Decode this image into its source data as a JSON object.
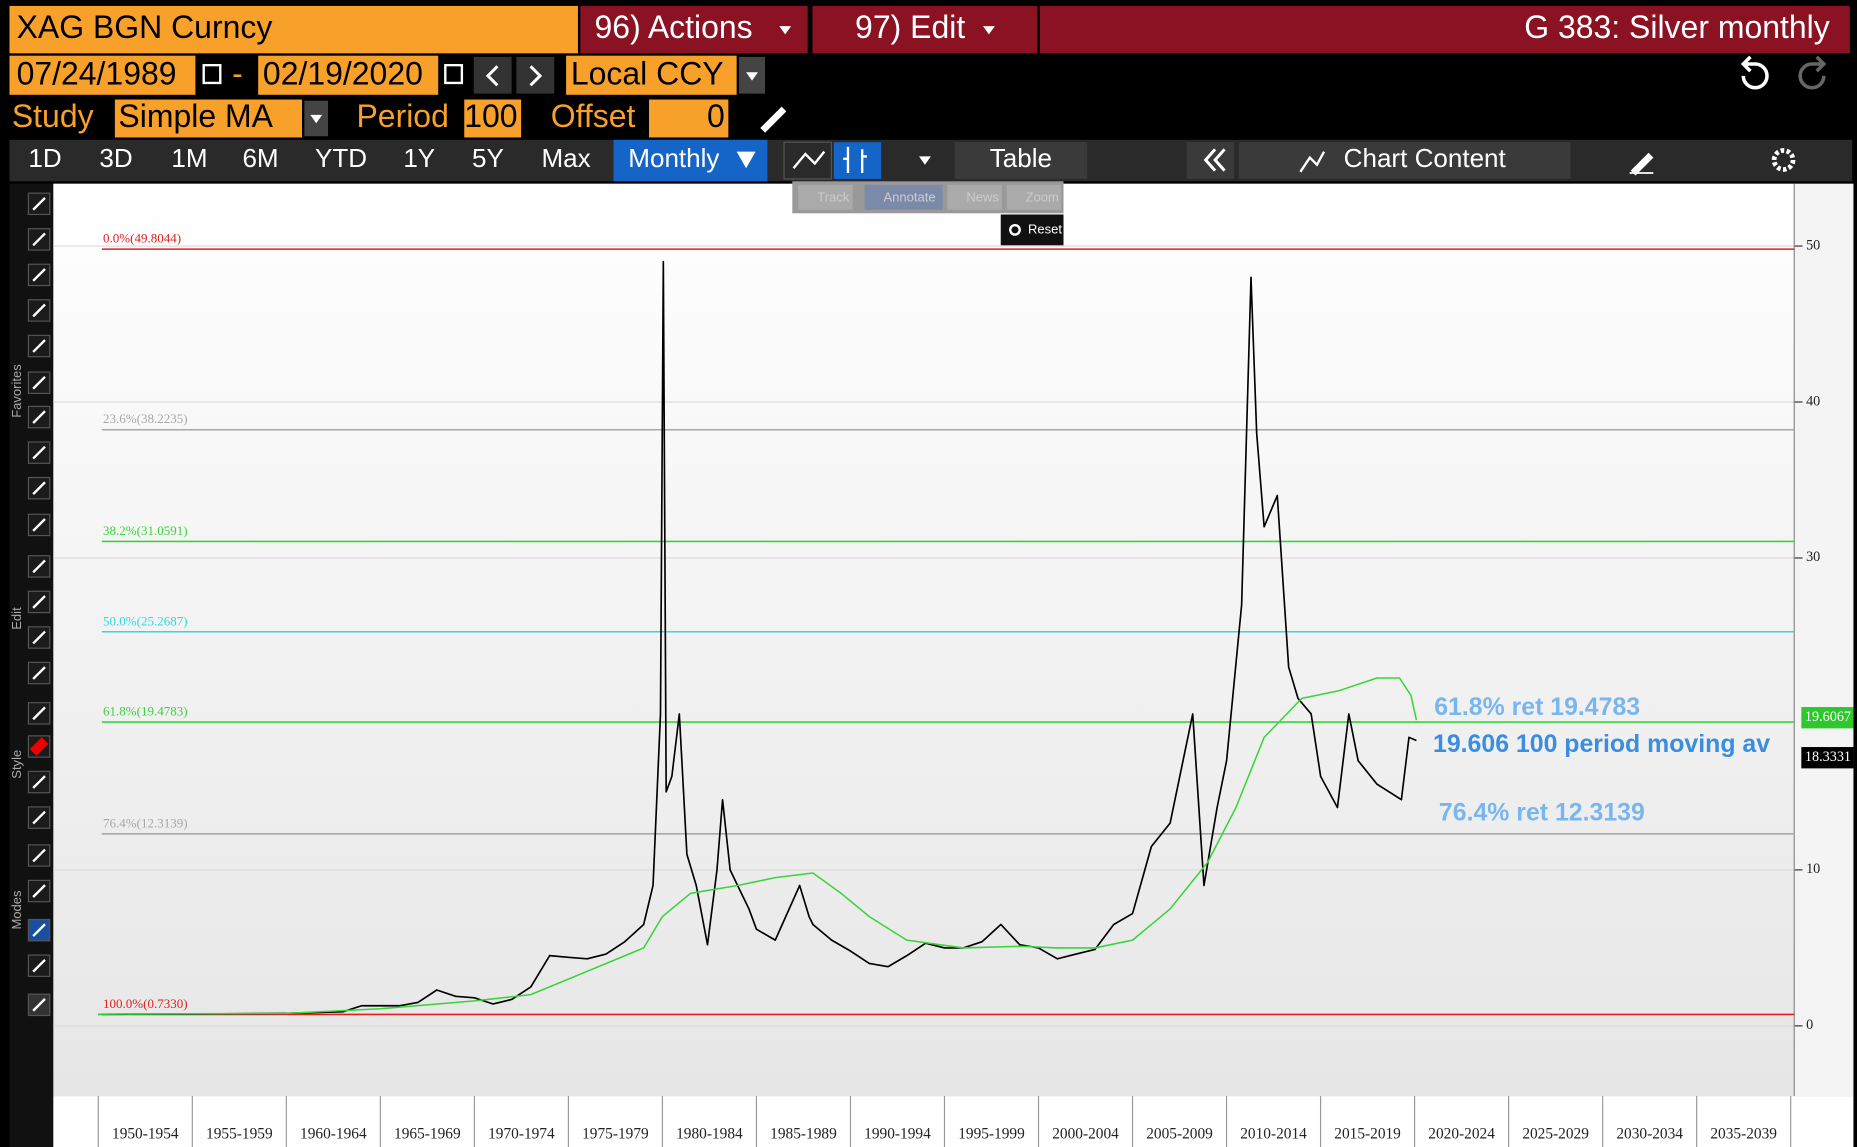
{
  "toolbar": {
    "security": "XAG BGN Curncy",
    "actions": "96) Actions",
    "edit": "97) Edit",
    "page_title": "G 383: Silver monthly",
    "start_date": "07/24/1989",
    "separator": "-",
    "end_date": "02/19/2020",
    "currency": "Local CCY",
    "study_label": "Study",
    "study": "Simple MA",
    "period_label": "Period",
    "period": "100",
    "offset_label": "Offset",
    "offset": "0",
    "tabs": [
      "1D",
      "3D",
      "1M",
      "6M",
      "YTD",
      "1Y",
      "5Y",
      "Max"
    ],
    "active_tab": "Monthly",
    "table": "Table",
    "chart_content": "Chart Content"
  },
  "side_toolbar": {
    "sections": [
      "Favorites",
      "Edit",
      "Style",
      "Modes"
    ]
  },
  "chart_menu": [
    "Track",
    "Annotate",
    "News",
    "Zoom",
    "Reset"
  ],
  "chart_data": {
    "type": "line",
    "series": [
      {
        "color": "#000000",
        "x": [
          1950,
          1955,
          1960,
          1963,
          1964,
          1966,
          1967,
          1968,
          1969,
          1970,
          1971,
          1972,
          1973,
          1974,
          1975,
          1976,
          1977,
          1978,
          1979,
          1979.5,
          1979.9,
          1980.05,
          1980.2,
          1980.5,
          1980.9,
          1981.3,
          1981.8,
          1982.4,
          1982.9,
          1983.2,
          1983.6,
          1984,
          1984.6,
          1985,
          1986,
          1987.3,
          1987.8,
          1988,
          1989,
          1990,
          1991,
          1992,
          1993,
          1994,
          1995,
          1996,
          1997,
          1998,
          1999,
          2000,
          2001,
          2002,
          2003,
          2004,
          2005,
          2006,
          2007,
          2008.2,
          2008.8,
          2009.5,
          2010,
          2010.8,
          2011.3,
          2011.6,
          2012,
          2012.7,
          2013.3,
          2013.8,
          2014.5,
          2015,
          2015.9,
          2016.5,
          2017,
          2018,
          2019.3,
          2019.7,
          2020.1
        ],
        "values": [
          0.74,
          0.76,
          0.8,
          0.9,
          1.29,
          1.29,
          1.5,
          2.3,
          1.9,
          1.8,
          1.4,
          1.7,
          2.5,
          4.5,
          4.4,
          4.3,
          4.6,
          5.4,
          6.5,
          9,
          20,
          49,
          15,
          16,
          20,
          11,
          9,
          5.2,
          10,
          14.5,
          10,
          9,
          7.5,
          6.2,
          5.5,
          9,
          7,
          6.5,
          5.5,
          4.8,
          4,
          3.8,
          4.5,
          5.3,
          5,
          5,
          5.4,
          6.5,
          5.2,
          5,
          4.3,
          4.6,
          4.9,
          6.5,
          7.2,
          11.5,
          13,
          20,
          9,
          14,
          17,
          27,
          48,
          38,
          32,
          34,
          23,
          21,
          20,
          16,
          14,
          20,
          17,
          15.5,
          14.5,
          18.5,
          18.3
        ]
      },
      {
        "color": "#3ad43a",
        "x": [
          1950,
          1960,
          1965,
          1970,
          1973,
          1976,
          1979,
          1980,
          1981.5,
          1984,
          1986,
          1988,
          1989.5,
          1991,
          1993,
          1996,
          1999,
          2001,
          2003,
          2005,
          2007,
          2009,
          2010.5,
          2012,
          2014,
          2016,
          2018,
          2019.2,
          2019.8,
          2020.1
        ],
        "values": [
          0.75,
          0.8,
          1.1,
          1.6,
          2,
          3.5,
          5,
          7,
          8.5,
          9,
          9.5,
          9.8,
          8.5,
          7,
          5.5,
          5,
          5.1,
          5,
          5,
          5.5,
          7.5,
          10.5,
          14,
          18.5,
          21,
          21.5,
          22.3,
          22.3,
          21.2,
          19.6
        ]
      }
    ],
    "xlim": [
      1950,
      2040
    ],
    "xticks": [
      {
        "value": 1950,
        "label": "1950-1954"
      },
      {
        "value": 1955,
        "label": "1955-1959"
      },
      {
        "value": 1960,
        "label": "1960-1964"
      },
      {
        "value": 1965,
        "label": "1965-1969"
      },
      {
        "value": 1970,
        "label": "1970-1974"
      },
      {
        "value": 1975,
        "label": "1975-1979"
      },
      {
        "value": 1980,
        "label": "1980-1984"
      },
      {
        "value": 1985,
        "label": "1985-1989"
      },
      {
        "value": 1990,
        "label": "1990-1994"
      },
      {
        "value": 1995,
        "label": "1995-1999"
      },
      {
        "value": 2000,
        "label": "2000-2004"
      },
      {
        "value": 2005,
        "label": "2005-2009"
      },
      {
        "value": 2010,
        "label": "2010-2014"
      },
      {
        "value": 2015,
        "label": "2015-2019"
      },
      {
        "value": 2020,
        "label": "2020-2024"
      },
      {
        "value": 2025,
        "label": "2025-2029"
      },
      {
        "value": 2030,
        "label": "2030-2034"
      },
      {
        "value": 2035,
        "label": "2035-2039"
      }
    ],
    "ylim": [
      -4.5,
      54
    ],
    "yticks": [
      0,
      10,
      30,
      40,
      50
    ],
    "grid": true,
    "fib_levels": [
      {
        "label": "0.0%(49.8044)",
        "value": 49.8044,
        "color": "#e02020"
      },
      {
        "label": "23.6%(38.2235)",
        "value": 38.2235,
        "color": "#a8a8a8"
      },
      {
        "label": "38.2%(31.0591)",
        "value": 31.0591,
        "color": "#3cd23c"
      },
      {
        "label": "50.0%(25.2687)",
        "value": 25.2687,
        "color": "#30d8e8"
      },
      {
        "label": "61.8%(19.4783)",
        "value": 19.4783,
        "color": "#3cd23c"
      },
      {
        "label": "76.4%(12.3139)",
        "value": 12.3139,
        "color": "#a8a8a8"
      },
      {
        "label": "100.0%(0.7330)",
        "value": 0.733,
        "color": "#e02020"
      }
    ],
    "value_tags": [
      {
        "value": 19.6067,
        "color": "#2ec82e"
      },
      {
        "value": 18.3331,
        "color": "#000000"
      }
    ],
    "annotations": [
      {
        "text": "61.8% ret 19.4783",
        "color": "#7ab6ee"
      },
      {
        "text": "19.606 100 period moving av",
        "color": "#3a8ee0"
      },
      {
        "text": "76.4% ret 12.3139",
        "color": "#7ab6ee"
      }
    ]
  }
}
